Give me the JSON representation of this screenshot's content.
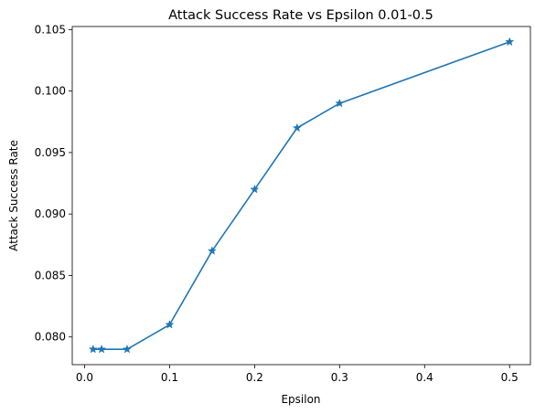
{
  "chart_data": {
    "type": "line",
    "title": "Attack Success Rate vs Epsilon 0.01-0.5",
    "xlabel": "Epsilon",
    "ylabel": "Attack Success Rate",
    "xlim": [
      -0.0145,
      0.5245
    ],
    "ylim": [
      0.07775,
      0.10525
    ],
    "xticks": [
      0.0,
      0.1,
      0.2,
      0.3,
      0.4,
      0.5
    ],
    "xtick_labels": [
      "0.0",
      "0.1",
      "0.2",
      "0.3",
      "0.4",
      "0.5"
    ],
    "yticks": [
      0.08,
      0.085,
      0.09,
      0.095,
      0.1,
      0.105
    ],
    "ytick_labels": [
      "0.080",
      "0.085",
      "0.090",
      "0.095",
      "0.100",
      "0.105"
    ],
    "grid": false,
    "series": [
      {
        "marker": "star",
        "color": "#1f77b4",
        "x": [
          0.01,
          0.02,
          0.05,
          0.1,
          0.15,
          0.2,
          0.25,
          0.3,
          0.5
        ],
        "y": [
          0.079,
          0.079,
          0.079,
          0.081,
          0.087,
          0.092,
          0.097,
          0.099,
          0.104
        ]
      }
    ]
  }
}
